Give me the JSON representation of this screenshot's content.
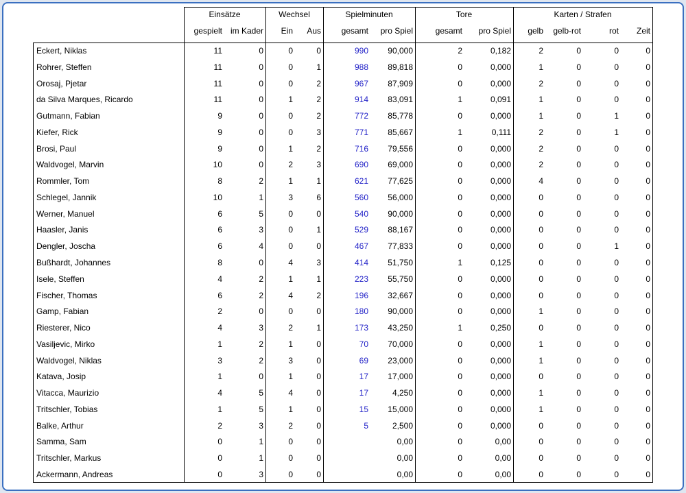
{
  "table": {
    "groups": [
      "Einsätze",
      "Wechsel",
      "Spielminuten",
      "Tore",
      "Karten / Strafen"
    ],
    "columns": [
      "gespielt",
      "im Kader",
      "Ein",
      "Aus",
      "gesamt",
      "pro Spiel",
      "gesamt",
      "pro Spiel",
      "gelb",
      "gelb-rot",
      "rot",
      "Zeit"
    ],
    "rows": [
      [
        "Eckert, Niklas",
        "11",
        "0",
        "0",
        "0",
        "990",
        "90,000",
        "2",
        "0,182",
        "2",
        "0",
        "0",
        "0"
      ],
      [
        "Rohrer, Steffen",
        "11",
        "0",
        "0",
        "1",
        "988",
        "89,818",
        "0",
        "0,000",
        "1",
        "0",
        "0",
        "0"
      ],
      [
        "Orosaj, Pjetar",
        "11",
        "0",
        "0",
        "2",
        "967",
        "87,909",
        "0",
        "0,000",
        "2",
        "0",
        "0",
        "0"
      ],
      [
        "da Silva Marques, Ricardo",
        "11",
        "0",
        "1",
        "2",
        "914",
        "83,091",
        "1",
        "0,091",
        "1",
        "0",
        "0",
        "0"
      ],
      [
        "Gutmann, Fabian",
        "9",
        "0",
        "0",
        "2",
        "772",
        "85,778",
        "0",
        "0,000",
        "1",
        "0",
        "1",
        "0"
      ],
      [
        "Kiefer, Rick",
        "9",
        "0",
        "0",
        "3",
        "771",
        "85,667",
        "1",
        "0,111",
        "2",
        "0",
        "1",
        "0"
      ],
      [
        "Brosi, Paul",
        "9",
        "0",
        "1",
        "2",
        "716",
        "79,556",
        "0",
        "0,000",
        "2",
        "0",
        "0",
        "0"
      ],
      [
        "Waldvogel, Marvin",
        "10",
        "0",
        "2",
        "3",
        "690",
        "69,000",
        "0",
        "0,000",
        "2",
        "0",
        "0",
        "0"
      ],
      [
        "Rommler, Tom",
        "8",
        "2",
        "1",
        "1",
        "621",
        "77,625",
        "0",
        "0,000",
        "4",
        "0",
        "0",
        "0"
      ],
      [
        "Schlegel, Jannik",
        "10",
        "1",
        "3",
        "6",
        "560",
        "56,000",
        "0",
        "0,000",
        "0",
        "0",
        "0",
        "0"
      ],
      [
        "Werner, Manuel",
        "6",
        "5",
        "0",
        "0",
        "540",
        "90,000",
        "0",
        "0,000",
        "0",
        "0",
        "0",
        "0"
      ],
      [
        "Haasler, Janis",
        "6",
        "3",
        "0",
        "1",
        "529",
        "88,167",
        "0",
        "0,000",
        "0",
        "0",
        "0",
        "0"
      ],
      [
        "Dengler, Joscha",
        "6",
        "4",
        "0",
        "0",
        "467",
        "77,833",
        "0",
        "0,000",
        "0",
        "0",
        "1",
        "0"
      ],
      [
        "Bußhardt, Johannes",
        "8",
        "0",
        "4",
        "3",
        "414",
        "51,750",
        "1",
        "0,125",
        "0",
        "0",
        "0",
        "0"
      ],
      [
        "Isele, Steffen",
        "4",
        "2",
        "1",
        "1",
        "223",
        "55,750",
        "0",
        "0,000",
        "0",
        "0",
        "0",
        "0"
      ],
      [
        "Fischer, Thomas",
        "6",
        "2",
        "4",
        "2",
        "196",
        "32,667",
        "0",
        "0,000",
        "0",
        "0",
        "0",
        "0"
      ],
      [
        "Gamp, Fabian",
        "2",
        "0",
        "0",
        "0",
        "180",
        "90,000",
        "0",
        "0,000",
        "1",
        "0",
        "0",
        "0"
      ],
      [
        "Riesterer, Nico",
        "4",
        "3",
        "2",
        "1",
        "173",
        "43,250",
        "1",
        "0,250",
        "0",
        "0",
        "0",
        "0"
      ],
      [
        "Vasiljevic, Mirko",
        "1",
        "2",
        "1",
        "0",
        "70",
        "70,000",
        "0",
        "0,000",
        "1",
        "0",
        "0",
        "0"
      ],
      [
        "Waldvogel, Niklas",
        "3",
        "2",
        "3",
        "0",
        "69",
        "23,000",
        "0",
        "0,000",
        "1",
        "0",
        "0",
        "0"
      ],
      [
        "Katava, Josip",
        "1",
        "0",
        "1",
        "0",
        "17",
        "17,000",
        "0",
        "0,000",
        "0",
        "0",
        "0",
        "0"
      ],
      [
        "Vitacca, Maurizio",
        "4",
        "5",
        "4",
        "0",
        "17",
        "4,250",
        "0",
        "0,000",
        "1",
        "0",
        "0",
        "0"
      ],
      [
        "Tritschler, Tobias",
        "1",
        "5",
        "1",
        "0",
        "15",
        "15,000",
        "0",
        "0,000",
        "1",
        "0",
        "0",
        "0"
      ],
      [
        "Balke, Arthur",
        "2",
        "3",
        "2",
        "0",
        "5",
        "2,500",
        "0",
        "0,000",
        "0",
        "0",
        "0",
        "0"
      ],
      [
        "Samma, Sam",
        "0",
        "1",
        "0",
        "0",
        null,
        "0,00",
        "0",
        "0,00",
        "0",
        "0",
        "0",
        "0"
      ],
      [
        "Tritschler, Markus",
        "0",
        "1",
        "0",
        "0",
        null,
        "0,00",
        "0",
        "0,00",
        "0",
        "0",
        "0",
        "0"
      ],
      [
        "Ackermann, Andreas",
        "0",
        "3",
        "0",
        "0",
        null,
        "0,00",
        "0",
        "0,00",
        "0",
        "0",
        "0",
        "0"
      ]
    ]
  }
}
